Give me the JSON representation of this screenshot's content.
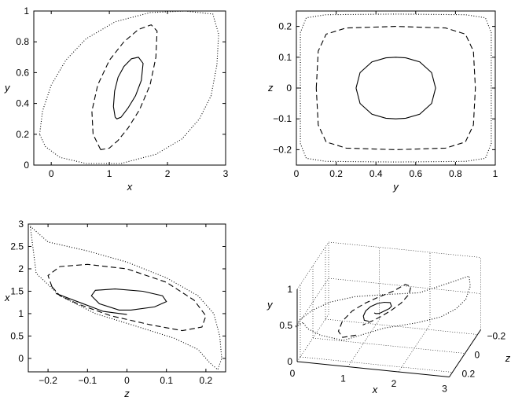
{
  "chart_data": [
    {
      "type": "line",
      "xlabel": "x",
      "ylabel": "y",
      "xlim": [
        -0.3,
        3
      ],
      "ylim": [
        0,
        1
      ],
      "xticks": [
        "0",
        "1",
        "2",
        "3"
      ],
      "yticks": [
        "0",
        "0.2",
        "0.4",
        "0.6",
        "0.8",
        "1"
      ],
      "series": [
        {
          "style": "solid",
          "x": [
            1.1,
            1.07,
            1.09,
            1.15,
            1.25,
            1.38,
            1.5,
            1.58,
            1.55,
            1.45,
            1.32,
            1.2,
            1.13,
            1.1
          ],
          "y": [
            0.31,
            0.38,
            0.48,
            0.57,
            0.64,
            0.69,
            0.7,
            0.66,
            0.55,
            0.45,
            0.37,
            0.31,
            0.3,
            0.31
          ]
        },
        {
          "style": "dashed",
          "x": [
            0.85,
            0.72,
            0.7,
            0.8,
            1.0,
            1.25,
            1.5,
            1.72,
            1.82,
            1.8,
            1.7,
            1.52,
            1.32,
            1.15,
            1.0,
            0.85
          ],
          "y": [
            0.1,
            0.2,
            0.35,
            0.52,
            0.68,
            0.8,
            0.88,
            0.91,
            0.87,
            0.7,
            0.52,
            0.36,
            0.24,
            0.16,
            0.11,
            0.1
          ]
        },
        {
          "style": "dotted",
          "x": [
            -0.2,
            -0.15,
            0.0,
            0.25,
            0.6,
            1.1,
            1.7,
            2.3,
            2.78,
            2.88,
            2.85,
            2.75,
            2.55,
            2.25,
            1.8,
            1.2,
            0.6,
            0.15,
            -0.1,
            -0.2
          ],
          "y": [
            0.2,
            0.35,
            0.52,
            0.68,
            0.82,
            0.93,
            0.99,
            1.0,
            0.98,
            0.85,
            0.65,
            0.45,
            0.3,
            0.17,
            0.07,
            0.01,
            0.01,
            0.05,
            0.12,
            0.2
          ]
        }
      ]
    },
    {
      "type": "line",
      "xlabel": "y",
      "ylabel": "z",
      "xlim": [
        0,
        1
      ],
      "ylim": [
        -0.25,
        0.25
      ],
      "xticks": [
        "0",
        "0.2",
        "0.4",
        "0.6",
        "0.8",
        "1"
      ],
      "yticks": [
        "−0.2",
        "−0.1",
        "0",
        "0.1",
        "0.2"
      ],
      "series": [
        {
          "style": "solid",
          "x": [
            0.3,
            0.32,
            0.38,
            0.45,
            0.5,
            0.55,
            0.62,
            0.68,
            0.7,
            0.68,
            0.62,
            0.55,
            0.5,
            0.45,
            0.38,
            0.32,
            0.3
          ],
          "y": [
            0.0,
            0.05,
            0.085,
            0.098,
            0.1,
            0.098,
            0.085,
            0.05,
            0.0,
            -0.05,
            -0.085,
            -0.098,
            -0.1,
            -0.098,
            -0.085,
            -0.05,
            0.0
          ]
        },
        {
          "style": "dashed",
          "x": [
            0.1,
            0.11,
            0.15,
            0.25,
            0.5,
            0.75,
            0.85,
            0.89,
            0.9,
            0.89,
            0.85,
            0.75,
            0.5,
            0.25,
            0.15,
            0.11,
            0.1
          ],
          "y": [
            0.0,
            0.12,
            0.175,
            0.195,
            0.2,
            0.195,
            0.175,
            0.12,
            0.0,
            -0.12,
            -0.175,
            -0.195,
            -0.2,
            -0.195,
            -0.175,
            -0.12,
            0.0
          ]
        },
        {
          "style": "dotted",
          "x": [
            0.02,
            0.02,
            0.05,
            0.15,
            0.5,
            0.85,
            0.95,
            0.98,
            0.98,
            0.98,
            0.95,
            0.85,
            0.5,
            0.15,
            0.05,
            0.02,
            0.02
          ],
          "y": [
            0.0,
            0.18,
            0.228,
            0.238,
            0.24,
            0.238,
            0.228,
            0.18,
            0.0,
            -0.18,
            -0.228,
            -0.238,
            -0.24,
            -0.238,
            -0.228,
            -0.18,
            0.0
          ]
        }
      ]
    },
    {
      "type": "line",
      "xlabel": "z",
      "ylabel": "x",
      "xlim": [
        -0.25,
        0.25
      ],
      "ylim": [
        -0.3,
        3
      ],
      "xticks": [
        "−0.2",
        "−0.1",
        "0",
        "0.1",
        "0.2"
      ],
      "yticks": [
        "0",
        "0.5",
        "1",
        "1.5",
        "2",
        "2.5",
        "3"
      ],
      "series": [
        {
          "style": "solid",
          "x": [
            0.01,
            0.07,
            0.1,
            0.09,
            0.04,
            -0.03,
            -0.08,
            -0.09,
            -0.07,
            -0.02,
            0.01
          ],
          "y": [
            1.08,
            1.15,
            1.27,
            1.4,
            1.5,
            1.55,
            1.52,
            1.4,
            1.22,
            1.08,
            1.08
          ]
        },
        {
          "style": "solid",
          "x": [
            -0.18,
            -0.12,
            -0.06,
            0.0
          ],
          "y": [
            1.45,
            1.25,
            1.05,
            0.98
          ]
        },
        {
          "style": "dashed",
          "x": [
            -0.19,
            -0.2,
            -0.17,
            -0.1,
            0.0,
            0.1,
            0.17,
            0.2,
            0.19,
            0.14,
            0.06,
            -0.04,
            -0.12,
            -0.17,
            -0.19
          ],
          "y": [
            1.6,
            1.85,
            2.05,
            2.1,
            2.0,
            1.7,
            1.3,
            0.95,
            0.7,
            0.62,
            0.75,
            0.95,
            1.2,
            1.4,
            1.6
          ]
        },
        {
          "style": "dotted",
          "x": [
            -0.245,
            -0.2,
            -0.1,
            0.0,
            0.1,
            0.18,
            0.22,
            0.235,
            0.24,
            0.23,
            0.21,
            0.18,
            0.12,
            0.03,
            -0.08,
            -0.17,
            -0.23,
            -0.245
          ],
          "y": [
            2.95,
            2.6,
            2.4,
            2.15,
            1.8,
            1.4,
            1.0,
            0.5,
            0.0,
            -0.25,
            -0.1,
            0.2,
            0.45,
            0.7,
            1.0,
            1.4,
            1.9,
            2.95
          ]
        }
      ]
    },
    {
      "type": "line",
      "xlabel": "x",
      "ylabel": "y",
      "zlabel": "z",
      "xticks": [
        "0",
        "1",
        "2",
        "3"
      ],
      "yticks": [
        "0",
        "0.5",
        "1"
      ],
      "zticks": [
        "0.2",
        "0",
        "−0.2"
      ]
    }
  ]
}
